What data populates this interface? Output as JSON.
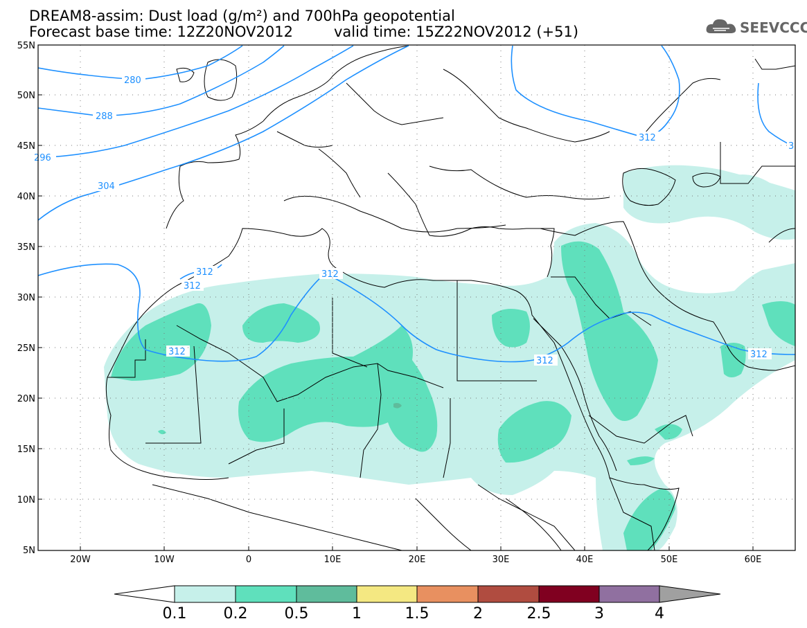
{
  "title": {
    "line1": "DREAM8-assim: Dust load (g/m²) and 700hPa geopotential",
    "line2_base": "Forecast base time: 12Z20NOV2012",
    "line2_valid": "valid time: 15Z22NOV2012 (+51)"
  },
  "logo": {
    "text": "SEEVCCC"
  },
  "map": {
    "lon_range": [
      -25,
      65
    ],
    "lat_range": [
      5,
      55
    ],
    "lat_labels": [
      "55N",
      "50N",
      "45N",
      "40N",
      "35N",
      "30N",
      "25N",
      "20N",
      "15N",
      "10N",
      "5N"
    ],
    "lon_labels": [
      "20W",
      "10W",
      "0",
      "10E",
      "20E",
      "30E",
      "40E",
      "50E",
      "60E"
    ],
    "contour_labels": [
      "280",
      "288",
      "296",
      "304",
      "312",
      "312",
      "312",
      "312",
      "312",
      "312",
      "312",
      "3"
    ]
  },
  "legend": {
    "labels": [
      "0.1",
      "0.2",
      "0.5",
      "1",
      "1.5",
      "2",
      "2.5",
      "3",
      "4"
    ],
    "colors": [
      "#ffffff",
      "#c6f0ea",
      "#5fe0bc",
      "#5fbc9c",
      "#f4e882",
      "#e89060",
      "#b04c40",
      "#800020",
      "#9070a0",
      "#a0a0a0"
    ]
  },
  "colors": {
    "contour": "#1e90ff",
    "dust_light": "#c6f0ea",
    "dust_medium": "#5fe0bc",
    "dust_dark": "#5fbc9c"
  }
}
